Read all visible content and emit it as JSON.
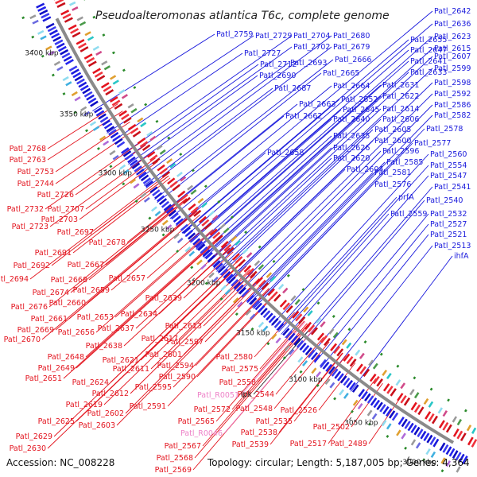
{
  "title": "Pseudoalteromonas atlantica T6c, complete genome",
  "footer": {
    "accession": "Accession: NC_008228",
    "topology": "Topology: circular; Length: 5,187,005 bp; Genes: 4,364"
  },
  "colors": {
    "forward": "#1a1adc",
    "reverse": "#e3141e",
    "rna": "#ee82c8",
    "backbone": "#8a8a8a",
    "gc_marks": "#2a8a2a"
  },
  "kbp_ticks": [
    "3000 kbp",
    "3050 kbp",
    "3100 kbp",
    "3150 kbp",
    "3200 kbp",
    "3250 kbp",
    "3300 kbp",
    "3350 kbp",
    "3400 kbp"
  ],
  "blue_labels": [
    "Patl_2642",
    "Patl_2636",
    "Patl_2623",
    "Patl_2615",
    "Patl_2607",
    "Patl_2599",
    "Patl_2598",
    "Patl_2592",
    "Patl_2586",
    "Patl_2582",
    "Patl_2578",
    "Patl_2577",
    "Patl_2560",
    "Patl_2554",
    "Patl_2547",
    "Patl_2541",
    "Patl_2540",
    "Patl_2532",
    "Patl_2527",
    "Patl_2521",
    "Patl_2513",
    "ihfA",
    "Patl_2655",
    "Patl_2647",
    "Patl_2641",
    "Patl_2633",
    "Patl_2631",
    "Patl_2622",
    "Patl_2614",
    "Patl_2606",
    "Patl_2605",
    "Patl_2600",
    "Patl_2596",
    "Patl_2585",
    "Patl_2581",
    "Patl_2576",
    "prfA",
    "Patl_2559",
    "Patl_2759",
    "Patl_2729",
    "Patl_2704",
    "Patl_2680",
    "Patl_2702",
    "Patl_2679",
    "Patl_2727",
    "Patl_2712",
    "Patl_2693",
    "Patl_2666",
    "Patl_2690",
    "Patl_2665",
    "Patl_2687",
    "Patl_2664",
    "Patl_2652",
    "Patl_2663",
    "Patl_2645",
    "Patl_2662",
    "Patl_2640",
    "Patl_2635",
    "Patl_2626",
    "Patl_2620",
    "Patl_2604",
    "Patl_2658"
  ],
  "red_labels": [
    "Patl_2768",
    "Patl_2763",
    "Patl_2753",
    "Patl_2744",
    "Patl_2726",
    "Patl_2732",
    "Patl_2707",
    "Patl_2703",
    "Patl_2723",
    "Patl_2697",
    "Patl_2678",
    "Patl_2691",
    "Patl_2692",
    "Patl_2667",
    "Patl_2694",
    "Patl_2668",
    "Patl_2657",
    "Patl_2674",
    "Patl_2659",
    "Patl_2676",
    "Patl_2660",
    "Patl_2661",
    "Patl_2639",
    "Patl_2669",
    "Patl_2653",
    "Patl_2634",
    "Patl_2656",
    "Patl_2637",
    "Patl_2613",
    "Patl_2670",
    "Patl_2617",
    "Patl_2638",
    "Patl_2648",
    "Patl_2621",
    "Patl_2601",
    "Patl_2597",
    "Patl_2649",
    "Patl_2611",
    "Patl_2594",
    "Patl_2580",
    "Patl_2651",
    "Patl_2624",
    "Patl_2590",
    "Patl_2575",
    "Patl_2612",
    "Patl_2595",
    "Patl_2558",
    "Patl_2619",
    "Patl_2544",
    "Patl_2591",
    "Patl_2572",
    "Patl_2548",
    "Patl_2602",
    "Patl_2526",
    "Patl_2625",
    "Patl_2603",
    "Patl_2565",
    "Patl_2535",
    "Patl_2538",
    "Patl_2502",
    "Patl_2629",
    "Patl_2567",
    "Patl_2539",
    "Patl_2517",
    "Patl_2489",
    "Patl_2630",
    "Patl_2568",
    "Patl_2569"
  ],
  "pink_labels": [
    "Patl_R0051",
    "Patl_R0046"
  ],
  "black_labels": [
    "ipk"
  ]
}
